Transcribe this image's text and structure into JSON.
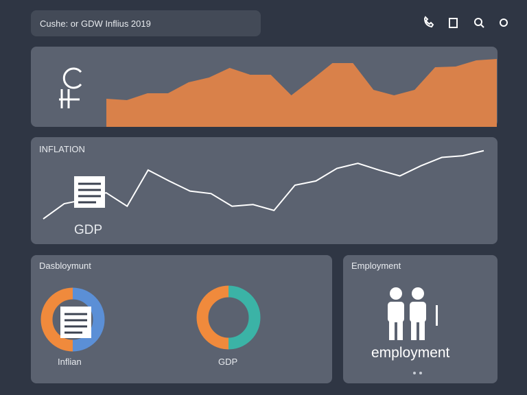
{
  "header": {
    "title": "Cushe: or GDW Inflius 2019"
  },
  "top_chart": {
    "type": "area",
    "color": "#d9814a",
    "ylim": [
      0,
      100
    ],
    "values": [
      41,
      39,
      49,
      49,
      65,
      72,
      86,
      76,
      76,
      46,
      69,
      93,
      93,
      54,
      46,
      54,
      87,
      88,
      97,
      99
    ]
  },
  "line_panel": {
    "title": "INFLATION",
    "icon_label": "GDP",
    "chart": {
      "type": "line",
      "color": "#ffffff",
      "ylim": [
        0,
        110
      ],
      "values": [
        17,
        35,
        40,
        48,
        32,
        75,
        62,
        50,
        47,
        32,
        34,
        27,
        57,
        62,
        77,
        83,
        75,
        68,
        80,
        90,
        92,
        98
      ]
    }
  },
  "donut_panel": {
    "title": "Dasbloymunt",
    "donuts": [
      {
        "type": "donut",
        "label": "Inflian",
        "values": [
          50,
          50
        ],
        "colors": [
          "#f08a3c",
          "#5b8fd6"
        ]
      },
      {
        "type": "donut",
        "label": "GDP",
        "values": [
          50,
          50
        ],
        "colors": [
          "#f08a3c",
          "#3bb3a6"
        ]
      }
    ]
  },
  "employment_panel": {
    "title": "Employment",
    "caption": "employment"
  }
}
